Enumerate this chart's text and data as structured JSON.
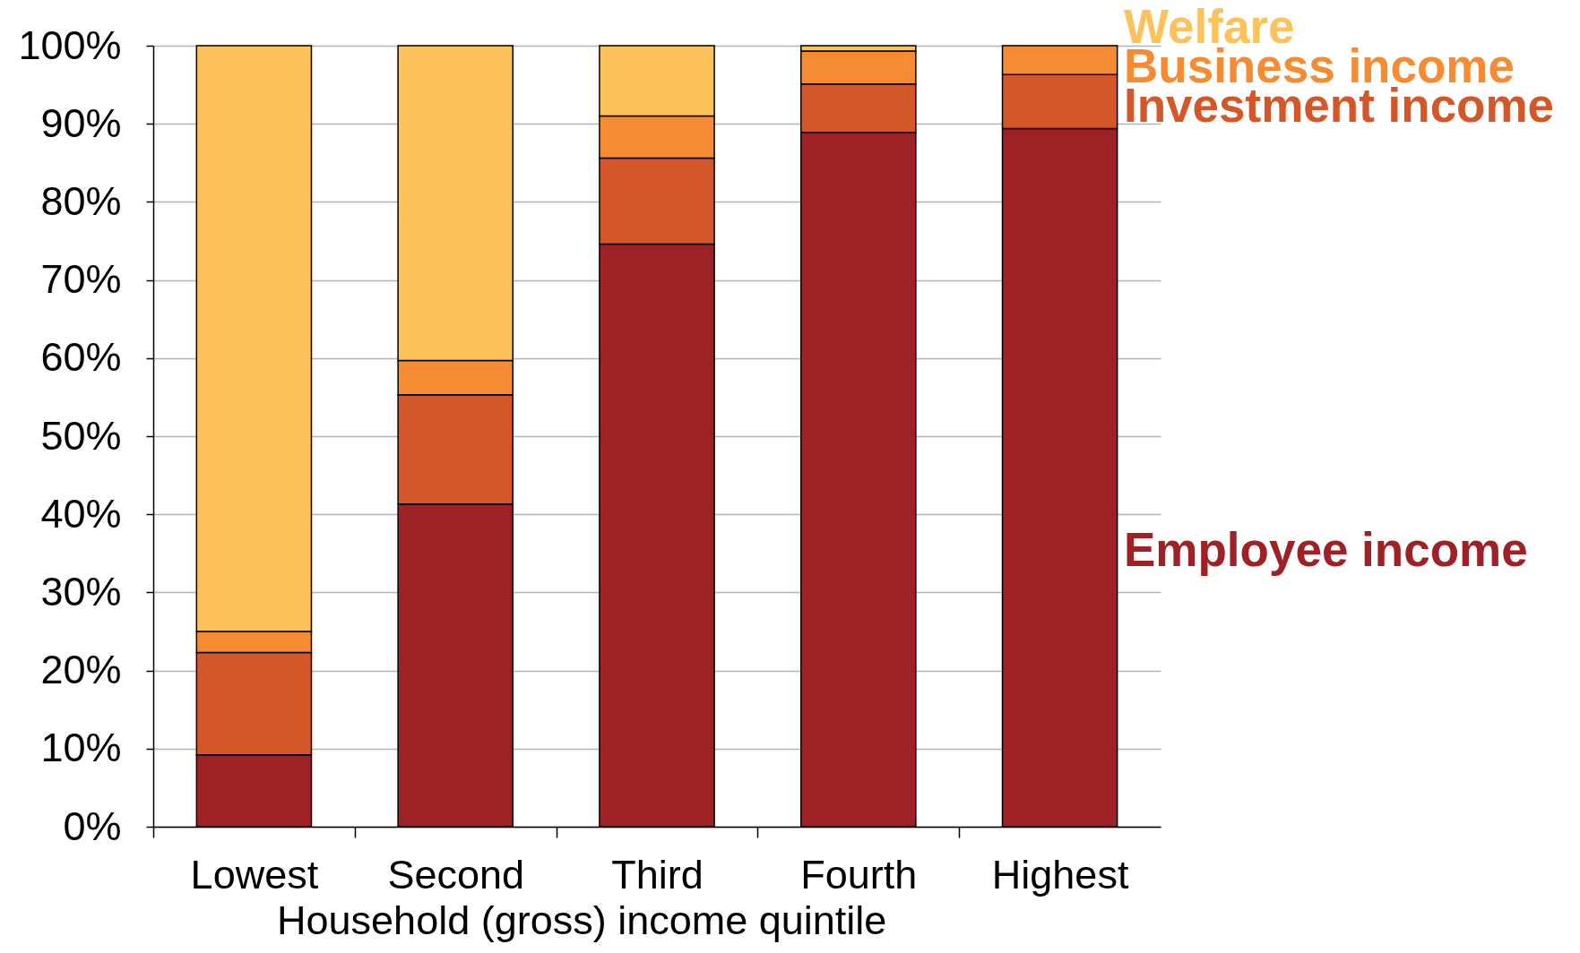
{
  "chart_data": {
    "type": "bar",
    "stacked": true,
    "xlabel": "Household  (gross) income quintile",
    "categories": [
      "Lowest",
      "Second",
      "Third",
      "Fourth",
      "Highest"
    ],
    "series": [
      {
        "name": "Employee income",
        "color": "#9e2126",
        "values": [
          9.2,
          41.3,
          74.6,
          88.9,
          89.4
        ]
      },
      {
        "name": "Investment income",
        "color": "#d4572a",
        "values": [
          13.1,
          14.0,
          11.0,
          6.2,
          6.9
        ]
      },
      {
        "name": "Business income",
        "color": "#f58b33",
        "values": [
          2.7,
          4.4,
          5.4,
          4.2,
          3.7
        ]
      },
      {
        "name": "Welfare",
        "color": "#fec25b",
        "values": [
          75.0,
          40.3,
          9.0,
          0.7,
          null
        ]
      }
    ],
    "ylim": [
      0,
      100
    ],
    "yticks": [
      {
        "value": 0,
        "label": "0%"
      },
      {
        "value": 10,
        "label": "10%"
      },
      {
        "value": 20,
        "label": "20%"
      },
      {
        "value": 30,
        "label": "30%"
      },
      {
        "value": 40,
        "label": "40%"
      },
      {
        "value": 50,
        "label": "50%"
      },
      {
        "value": 60,
        "label": "60%"
      },
      {
        "value": 70,
        "label": "70%"
      },
      {
        "value": 80,
        "label": "80%"
      },
      {
        "value": 90,
        "label": "90%"
      },
      {
        "value": 100,
        "label": "100%"
      }
    ],
    "grid": "y",
    "legend": "right"
  }
}
